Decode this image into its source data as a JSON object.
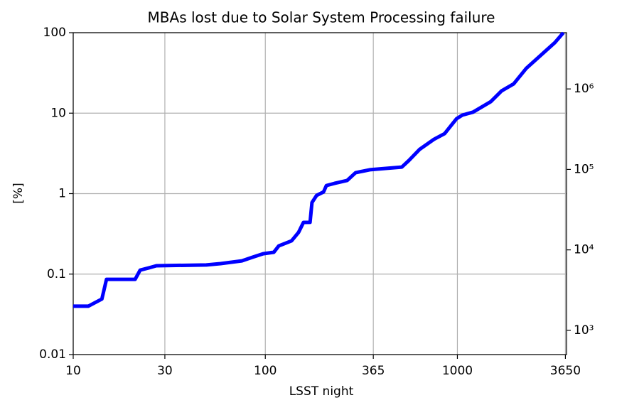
{
  "chart_data": {
    "type": "line",
    "title": "MBAs lost due to Solar System Processing failure",
    "x_label": "LSST night",
    "y_label": "[%]",
    "x_log": true,
    "y_log": true,
    "y2_log": true,
    "grid": true,
    "xlim": [
      10,
      3700
    ],
    "xticks": [
      10,
      30,
      100,
      365,
      1000,
      3650
    ],
    "ylim": [
      0.01,
      100
    ],
    "yticks": [
      0.01,
      0.1,
      1,
      10,
      100
    ],
    "y2lim": [
      500,
      5000000
    ],
    "y2ticks": [
      {
        "value": 1000,
        "label": "10³"
      },
      {
        "value": 10000,
        "label": "10⁴"
      },
      {
        "value": 100000,
        "label": "10⁵"
      },
      {
        "value": 1000000,
        "label": "10⁶"
      }
    ],
    "x": [
      10,
      12,
      14.1,
      14.9,
      21,
      22.3,
      24.9,
      27.1,
      49.3,
      58.5,
      75.5,
      85.8,
      97.4,
      110.8,
      117.5,
      137,
      149,
      158,
      171,
      175,
      185,
      201,
      208,
      229,
      267,
      295,
      350,
      514,
      559,
      637,
      755,
      858,
      991,
      1061,
      1206,
      1492,
      1698,
      1963,
      2287,
      2712,
      3216,
      3563
    ],
    "series": [
      {
        "name": "MBAs lost",
        "color": "#0000ff",
        "values": [
          0.04,
          0.04,
          0.049,
          0.086,
          0.086,
          0.112,
          0.12,
          0.127,
          0.13,
          0.135,
          0.146,
          0.162,
          0.179,
          0.187,
          0.224,
          0.259,
          0.33,
          0.439,
          0.44,
          0.776,
          0.95,
          1.05,
          1.26,
          1.34,
          1.46,
          1.82,
          1.98,
          2.14,
          2.58,
          3.56,
          4.73,
          5.57,
          8.55,
          9.46,
          10.3,
          13.9,
          18.9,
          23.1,
          36.2,
          52.2,
          75.2,
          100
        ]
      }
    ]
  }
}
